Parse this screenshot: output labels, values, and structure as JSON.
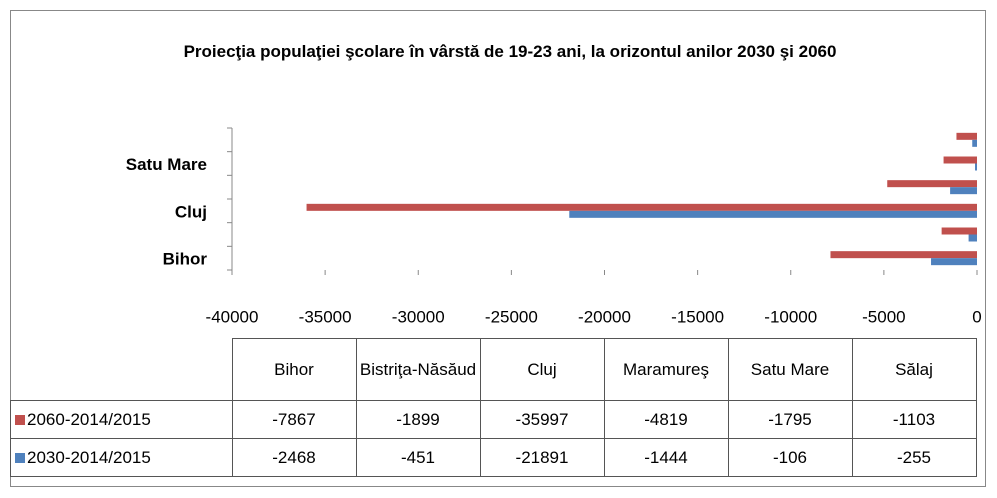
{
  "chart_data": {
    "type": "barh",
    "title": "Proiecţia populaţiei şcolare în vârstă de 19-23 ani, la orizontul anilor 2030 şi 2060",
    "categories": [
      "Bihor",
      "Bistriţa-Năsăud",
      "Cluj",
      "Maramureş",
      "Satu Mare",
      "Sălaj"
    ],
    "series": [
      {
        "name": "2060-2014/2015",
        "color": "#c0504d",
        "values": [
          -7867,
          -1899,
          -35997,
          -4819,
          -1795,
          -1103
        ]
      },
      {
        "name": "2030-2014/2015",
        "color": "#4f81bd",
        "values": [
          -2468,
          -451,
          -21891,
          -1444,
          -106,
          -255
        ]
      }
    ],
    "xlim": [
      -40000,
      0
    ],
    "xticks": [
      -40000,
      -35000,
      -30000,
      -25000,
      -20000,
      -15000,
      -10000,
      -5000,
      0
    ]
  }
}
